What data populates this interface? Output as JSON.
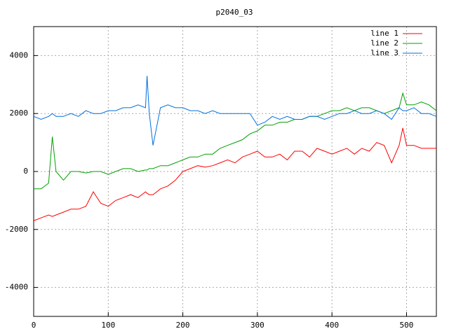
{
  "chart_data": {
    "type": "line",
    "title": "p2040_03",
    "x": [
      0,
      10,
      20,
      25,
      30,
      40,
      50,
      60,
      70,
      80,
      90,
      100,
      110,
      120,
      130,
      140,
      150,
      152,
      155,
      160,
      170,
      180,
      190,
      200,
      210,
      220,
      230,
      240,
      250,
      260,
      270,
      280,
      290,
      300,
      310,
      320,
      330,
      340,
      350,
      360,
      370,
      380,
      390,
      400,
      410,
      420,
      430,
      440,
      450,
      460,
      470,
      480,
      490,
      495,
      500,
      510,
      520,
      530,
      540
    ],
    "series": [
      {
        "name": "line 1",
        "color": "#ff0000",
        "values": [
          -1700,
          -1600,
          -1500,
          -1550,
          -1500,
          -1400,
          -1300,
          -1300,
          -1200,
          -700,
          -1100,
          -1200,
          -1000,
          -900,
          -800,
          -900,
          -700,
          -750,
          -800,
          -800,
          -600,
          -500,
          -300,
          0,
          100,
          200,
          150,
          200,
          300,
          400,
          300,
          500,
          600,
          700,
          500,
          500,
          600,
          400,
          700,
          700,
          500,
          800,
          700,
          600,
          700,
          800,
          600,
          800,
          700,
          1000,
          900,
          300,
          900,
          1500,
          900,
          900,
          800,
          800,
          800
        ]
      },
      {
        "name": "line 2",
        "color": "#00a000",
        "values": [
          -600,
          -600,
          -400,
          1200,
          0,
          -300,
          0,
          0,
          -50,
          0,
          0,
          -100,
          0,
          100,
          100,
          0,
          50,
          50,
          100,
          100,
          200,
          200,
          300,
          400,
          500,
          500,
          600,
          600,
          800,
          900,
          1000,
          1100,
          1300,
          1400,
          1600,
          1600,
          1700,
          1700,
          1800,
          1800,
          1900,
          1900,
          2000,
          2100,
          2100,
          2200,
          2100,
          2200,
          2200,
          2100,
          2000,
          2100,
          2200,
          2700,
          2300,
          2300,
          2400,
          2300,
          2100
        ]
      },
      {
        "name": "line 3",
        "color": "#0070e0",
        "values": [
          1900,
          1800,
          1900,
          2000,
          1900,
          1900,
          2000,
          1900,
          2100,
          2000,
          2000,
          2100,
          2100,
          2200,
          2200,
          2300,
          2200,
          3300,
          2000,
          900,
          2200,
          2300,
          2200,
          2200,
          2100,
          2100,
          2000,
          2100,
          2000,
          2000,
          2000,
          2000,
          2000,
          1600,
          1700,
          1900,
          1800,
          1900,
          1800,
          1800,
          1900,
          1900,
          1800,
          1900,
          2000,
          2000,
          2100,
          2000,
          2000,
          2100,
          2000,
          1800,
          2200,
          2100,
          2100,
          2200,
          2000,
          2000,
          1900
        ]
      }
    ],
    "xlim": [
      0,
      540
    ],
    "ylim": [
      -5000,
      5000
    ],
    "xticks": [
      0,
      100,
      200,
      300,
      400,
      500
    ],
    "yticks": [
      -4000,
      -2000,
      0,
      2000,
      4000
    ],
    "grid": true,
    "legend": "top-right"
  }
}
